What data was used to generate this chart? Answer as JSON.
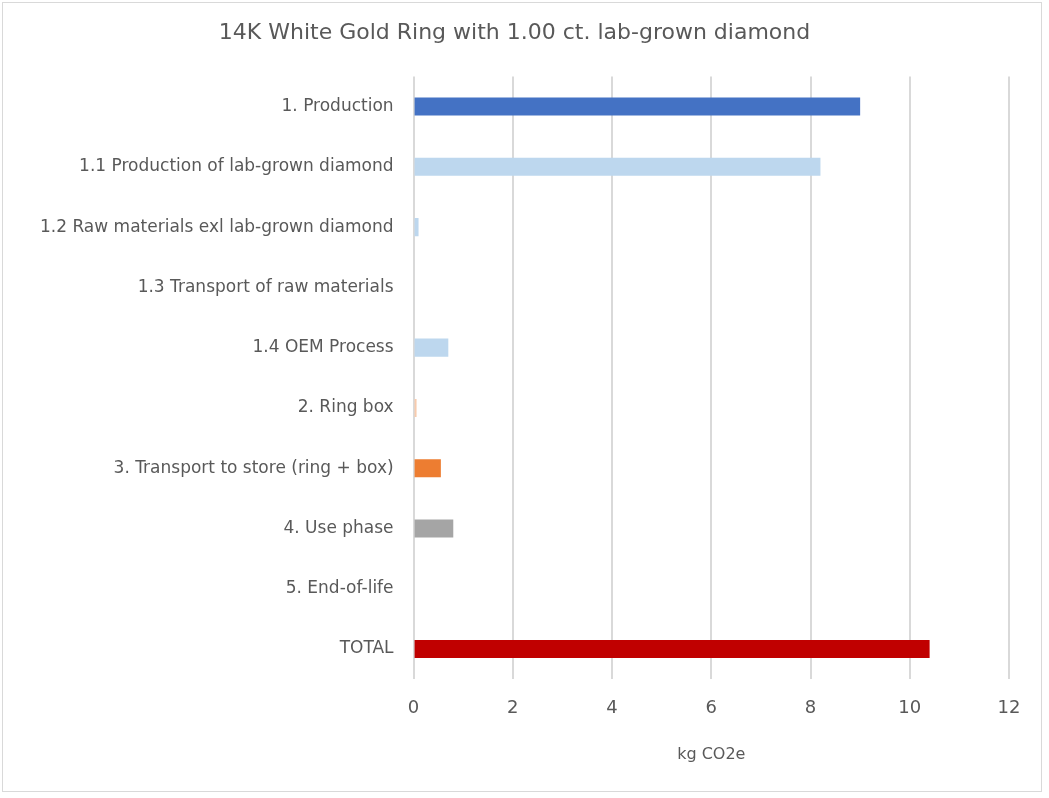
{
  "chart_data": {
    "type": "bar",
    "orientation": "horizontal",
    "title": "14K White Gold Ring with 1.00 ct. lab-grown diamond",
    "xlabel": "kg CO2e",
    "categories": [
      "1. Production",
      "1.1 Production of lab-grown diamond",
      "1.2 Raw materials exl lab-grown diamond",
      "1.3 Transport of raw materials",
      "1.4 OEM Process",
      "2. Ring box",
      "3. Transport to store (ring + box)",
      "4. Use phase",
      "5. End-of-life",
      "TOTAL"
    ],
    "values": [
      9.0,
      8.2,
      0.1,
      0,
      0.7,
      0.06,
      0.55,
      0.8,
      0,
      10.4
    ],
    "colors": [
      "#4472c4",
      "#bdd7ee",
      "#bdd7ee",
      "#bdd7ee",
      "#bdd7ee",
      "#f8cbad",
      "#ed7d31",
      "#a5a5a5",
      "#ffc000",
      "#c00000"
    ],
    "xlim": [
      0,
      12
    ],
    "xticks": [
      0,
      2,
      4,
      6,
      8,
      10,
      12
    ],
    "grid": "x",
    "legend": false
  }
}
